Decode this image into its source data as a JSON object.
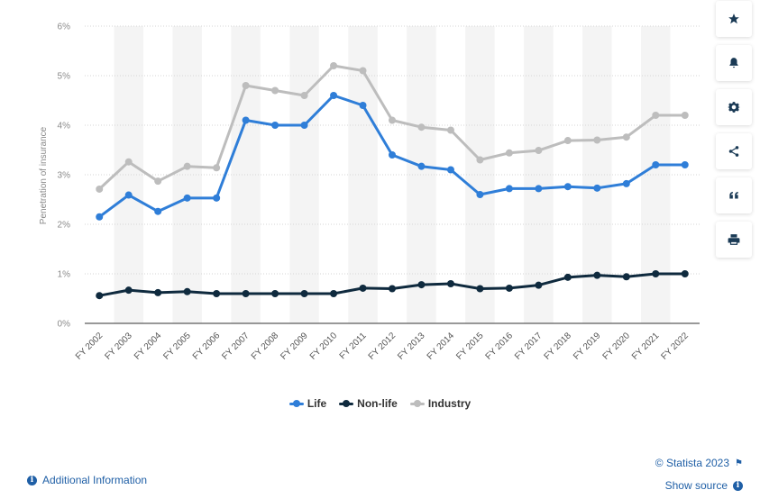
{
  "chart_data": {
    "type": "line",
    "categories": [
      "FY 2002",
      "FY 2003",
      "FY 2004",
      "FY 2005",
      "FY 2006",
      "FY 2007",
      "FY 2008",
      "FY 2009",
      "FY 2010",
      "FY 2011",
      "FY 2012",
      "FY 2013",
      "FY 2014",
      "FY 2015",
      "FY 2016",
      "FY 2017",
      "FY 2018",
      "FY 2019",
      "FY 2020",
      "FY 2021",
      "FY 2022"
    ],
    "series": [
      {
        "name": "Life",
        "color": "#2f7ed8",
        "values": [
          2.15,
          2.59,
          2.26,
          2.53,
          2.53,
          4.1,
          4.0,
          4.0,
          4.6,
          4.4,
          3.4,
          3.17,
          3.1,
          2.6,
          2.72,
          2.72,
          2.76,
          2.73,
          2.82,
          3.2,
          3.2
        ]
      },
      {
        "name": "Non-life",
        "color": "#0f2a3e",
        "values": [
          0.56,
          0.67,
          0.62,
          0.64,
          0.6,
          0.6,
          0.6,
          0.6,
          0.6,
          0.71,
          0.7,
          0.78,
          0.8,
          0.7,
          0.71,
          0.77,
          0.93,
          0.97,
          0.94,
          1.0,
          1.0
        ]
      },
      {
        "name": "Industry",
        "color": "#bdbdbd",
        "values": [
          2.71,
          3.26,
          2.87,
          3.17,
          3.14,
          4.8,
          4.7,
          4.6,
          5.2,
          5.1,
          4.1,
          3.96,
          3.9,
          3.3,
          3.44,
          3.49,
          3.69,
          3.7,
          3.76,
          4.2,
          4.2
        ]
      }
    ],
    "ylabel": "Penetration of insurance",
    "ylim": [
      0,
      6
    ],
    "yticks": [
      "0%",
      "1%",
      "2%",
      "3%",
      "4%",
      "5%",
      "6%"
    ],
    "grid": true,
    "legend": "bottom-center"
  },
  "legend": {
    "life": "Life",
    "non_life": "Non-life",
    "industry": "Industry"
  },
  "toolbar": {
    "icons": [
      "star-icon",
      "bell-icon",
      "gear-icon",
      "share-icon",
      "quote-icon",
      "print-icon"
    ]
  },
  "footer": {
    "additional_info": "Additional Information",
    "copyright": "© Statista 2023",
    "show_source": "Show source",
    "info_glyph": "i"
  }
}
